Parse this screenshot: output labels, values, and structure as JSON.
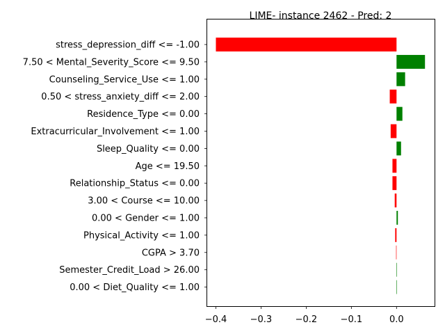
{
  "chart_data": {
    "type": "bar",
    "orientation": "horizontal",
    "title": "LIME- instance 2462 - Pred: 2",
    "xlabel": "",
    "ylabel": "",
    "xlim": [
      -0.42,
      0.085
    ],
    "xticks": [
      -0.4,
      -0.3,
      -0.2,
      -0.1,
      0.0
    ],
    "xtick_labels": [
      "−0.4",
      "−0.3",
      "−0.2",
      "−0.1",
      "0.0"
    ],
    "grid": false,
    "colors": {
      "positive": "#008000",
      "negative": "#ff0000"
    },
    "categories": [
      "stress_depression_diff <= -1.00",
      "7.50 < Mental_Severity_Score <= 9.50",
      "Counseling_Service_Use <= 1.00",
      "0.50 < stress_anxiety_diff <= 2.00",
      "Residence_Type <= 0.00",
      "Extracurricular_Involvement <= 1.00",
      "Sleep_Quality <= 0.00",
      "Age <= 19.50",
      "Relationship_Status <= 0.00",
      "3.00 < Course <= 10.00",
      "0.00 < Gender <= 1.00",
      "Physical_Activity <= 1.00",
      "CGPA > 3.70",
      "Semester_Credit_Load > 26.00",
      "0.00 < Diet_Quality <= 1.00"
    ],
    "values": [
      -0.4,
      0.063,
      0.019,
      -0.015,
      0.013,
      -0.013,
      0.01,
      -0.009,
      -0.009,
      -0.004,
      0.003,
      -0.003,
      -0.001,
      0.0,
      0.0
    ]
  }
}
